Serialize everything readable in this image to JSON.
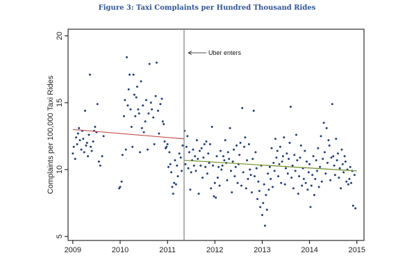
{
  "figure_title": "Figure 3: Taxi Complaints per Hundred Thousand Rides",
  "colors": {
    "title": "#2f5597",
    "points": "#1f3f78",
    "trend_before": "#c0504d",
    "trend_after": "#6b8e23",
    "event_line": "#888888",
    "plot_bg": "#ffffff",
    "frame": "#000000"
  },
  "chart_data": {
    "type": "scatter",
    "xlabel": "",
    "ylabel": "Complaints per 100,000 Taxi Rides",
    "xlim": [
      2008.9,
      2015.15
    ],
    "ylim": [
      4.7,
      20.5
    ],
    "xticks": [
      2009,
      2010,
      2011,
      2012,
      2013,
      2014,
      2015
    ],
    "yticks": [
      5,
      10,
      15,
      20
    ],
    "grid": false,
    "event": {
      "x": 2011.35,
      "label": "Uber enters"
    },
    "trend_lines": [
      {
        "x": [
          2009,
          2011.35
        ],
        "y": [
          13.0,
          12.3
        ]
      },
      {
        "x": [
          2011.35,
          2015
        ],
        "y": [
          10.7,
          9.9
        ]
      }
    ],
    "points": [
      [
        2009.0,
        11.2
      ],
      [
        2009.02,
        11.7
      ],
      [
        2009.05,
        10.8
      ],
      [
        2009.07,
        12.4
      ],
      [
        2009.09,
        11.9
      ],
      [
        2009.11,
        12.7
      ],
      [
        2009.13,
        13.1
      ],
      [
        2009.15,
        12.2
      ],
      [
        2009.18,
        11.5
      ],
      [
        2009.2,
        12.9
      ],
      [
        2009.22,
        12.3
      ],
      [
        2009.24,
        11.3
      ],
      [
        2009.26,
        14.4
      ],
      [
        2009.28,
        11.8
      ],
      [
        2009.3,
        12.0
      ],
      [
        2009.32,
        11.0
      ],
      [
        2009.34,
        12.6
      ],
      [
        2009.36,
        17.1
      ],
      [
        2009.38,
        11.7
      ],
      [
        2009.4,
        11.4
      ],
      [
        2009.43,
        12.1
      ],
      [
        2009.45,
        12.9
      ],
      [
        2009.47,
        13.2
      ],
      [
        2009.5,
        12.8
      ],
      [
        2009.52,
        14.9
      ],
      [
        2009.55,
        10.6
      ],
      [
        2009.58,
        10.3
      ],
      [
        2009.62,
        11.0
      ],
      [
        2009.65,
        12.5
      ],
      [
        2009.98,
        8.6
      ],
      [
        2010.0,
        8.7
      ],
      [
        2010.03,
        9.1
      ],
      [
        2010.05,
        11.1
      ],
      [
        2010.08,
        14.0
      ],
      [
        2010.1,
        15.2
      ],
      [
        2010.12,
        11.5
      ],
      [
        2010.14,
        18.4
      ],
      [
        2010.16,
        14.8
      ],
      [
        2010.18,
        16.0
      ],
      [
        2010.2,
        17.1
      ],
      [
        2010.22,
        14.5
      ],
      [
        2010.24,
        13.2
      ],
      [
        2010.26,
        11.7
      ],
      [
        2010.28,
        17.1
      ],
      [
        2010.3,
        15.6
      ],
      [
        2010.32,
        14.0
      ],
      [
        2010.34,
        15.4
      ],
      [
        2010.36,
        16.2
      ],
      [
        2010.38,
        14.5
      ],
      [
        2010.4,
        14.2
      ],
      [
        2010.42,
        11.3
      ],
      [
        2010.44,
        16.6
      ],
      [
        2010.46,
        13.1
      ],
      [
        2010.48,
        14.8
      ],
      [
        2010.5,
        12.8
      ],
      [
        2010.53,
        13.6
      ],
      [
        2010.55,
        15.2
      ],
      [
        2010.58,
        11.5
      ],
      [
        2010.6,
        14.2
      ],
      [
        2010.62,
        17.9
      ],
      [
        2010.65,
        15.0
      ],
      [
        2010.67,
        14.5
      ],
      [
        2010.7,
        13.9
      ],
      [
        2010.72,
        11.9
      ],
      [
        2010.75,
        15.5
      ],
      [
        2010.77,
        18.0
      ],
      [
        2010.8,
        14.4
      ],
      [
        2010.82,
        12.7
      ],
      [
        2010.85,
        14.9
      ],
      [
        2010.88,
        15.3
      ],
      [
        2010.9,
        13.6
      ],
      [
        2010.92,
        13.4
      ],
      [
        2010.94,
        12.1
      ],
      [
        2010.96,
        11.6
      ],
      [
        2010.98,
        11.7
      ],
      [
        2011.0,
        11.9
      ],
      [
        2011.02,
        10.2
      ],
      [
        2011.04,
        11.3
      ],
      [
        2011.06,
        10.4
      ],
      [
        2011.08,
        9.8
      ],
      [
        2011.1,
        8.7
      ],
      [
        2011.12,
        8.2
      ],
      [
        2011.14,
        9.0
      ],
      [
        2011.16,
        10.7
      ],
      [
        2011.18,
        8.9
      ],
      [
        2011.2,
        10.3
      ],
      [
        2011.22,
        9.5
      ],
      [
        2011.25,
        11.2
      ],
      [
        2011.28,
        10.9
      ],
      [
        2011.3,
        9.9
      ],
      [
        2011.32,
        11.8
      ],
      [
        2011.36,
        12.9
      ],
      [
        2011.38,
        10.4
      ],
      [
        2011.4,
        11.7
      ],
      [
        2011.42,
        12.5
      ],
      [
        2011.44,
        10.1
      ],
      [
        2011.46,
        11.3
      ],
      [
        2011.48,
        8.5
      ],
      [
        2011.5,
        9.8
      ],
      [
        2011.52,
        10.7
      ],
      [
        2011.54,
        11.5
      ],
      [
        2011.56,
        10.3
      ],
      [
        2011.58,
        11.0
      ],
      [
        2011.6,
        9.9
      ],
      [
        2011.62,
        12.2
      ],
      [
        2011.64,
        10.8
      ],
      [
        2011.66,
        8.2
      ],
      [
        2011.68,
        11.4
      ],
      [
        2011.7,
        10.3
      ],
      [
        2011.72,
        11.6
      ],
      [
        2011.74,
        9.4
      ],
      [
        2011.76,
        10.9
      ],
      [
        2011.78,
        11.9
      ],
      [
        2011.8,
        10.2
      ],
      [
        2011.82,
        12.1
      ],
      [
        2011.84,
        9.7
      ],
      [
        2011.86,
        11.2
      ],
      [
        2011.88,
        10.5
      ],
      [
        2011.9,
        11.9
      ],
      [
        2011.92,
        8.6
      ],
      [
        2011.94,
        13.2
      ],
      [
        2011.96,
        10.3
      ],
      [
        2011.98,
        8.0
      ],
      [
        2012.0,
        9.0
      ],
      [
        2012.02,
        7.9
      ],
      [
        2012.04,
        11.0
      ],
      [
        2012.06,
        9.4
      ],
      [
        2012.08,
        10.2
      ],
      [
        2012.1,
        8.8
      ],
      [
        2012.12,
        11.4
      ],
      [
        2012.14,
        10.0
      ],
      [
        2012.16,
        10.3
      ],
      [
        2012.18,
        11.0
      ],
      [
        2012.2,
        10.7
      ],
      [
        2012.22,
        12.2
      ],
      [
        2012.24,
        10.5
      ],
      [
        2012.26,
        9.2
      ],
      [
        2012.28,
        11.3
      ],
      [
        2012.3,
        10.8
      ],
      [
        2012.32,
        13.1
      ],
      [
        2012.34,
        9.9
      ],
      [
        2012.36,
        8.3
      ],
      [
        2012.38,
        10.6
      ],
      [
        2012.4,
        11.5
      ],
      [
        2012.42,
        9.5
      ],
      [
        2012.44,
        10.2
      ],
      [
        2012.46,
        11.8
      ],
      [
        2012.48,
        9.0
      ],
      [
        2012.5,
        10.4
      ],
      [
        2012.52,
        11.1
      ],
      [
        2012.54,
        12.0
      ],
      [
        2012.56,
        8.8
      ],
      [
        2012.58,
        14.6
      ],
      [
        2012.6,
        9.8
      ],
      [
        2012.62,
        11.7
      ],
      [
        2012.64,
        12.4
      ],
      [
        2012.66,
        8.6
      ],
      [
        2012.68,
        10.7
      ],
      [
        2012.7,
        9.3
      ],
      [
        2012.72,
        11.9
      ],
      [
        2012.74,
        10.0
      ],
      [
        2012.76,
        9.6
      ],
      [
        2012.78,
        8.3
      ],
      [
        2012.8,
        10.8
      ],
      [
        2012.82,
        14.4
      ],
      [
        2012.84,
        9.5
      ],
      [
        2012.86,
        11.3
      ],
      [
        2012.88,
        10.1
      ],
      [
        2012.9,
        7.8
      ],
      [
        2012.92,
        9.1
      ],
      [
        2012.94,
        8.4
      ],
      [
        2012.96,
        7.2
      ],
      [
        2012.98,
        10.3
      ],
      [
        2013.0,
        6.6
      ],
      [
        2013.02,
        7.5
      ],
      [
        2013.04,
        8.9
      ],
      [
        2013.06,
        5.8
      ],
      [
        2013.08,
        8.1
      ],
      [
        2013.1,
        7.0
      ],
      [
        2013.12,
        9.7
      ],
      [
        2013.14,
        8.5
      ],
      [
        2013.16,
        10.2
      ],
      [
        2013.18,
        9.3
      ],
      [
        2013.2,
        11.6
      ],
      [
        2013.22,
        8.7
      ],
      [
        2013.24,
        10.5
      ],
      [
        2013.26,
        9.9
      ],
      [
        2013.28,
        12.3
      ],
      [
        2013.3,
        10.9
      ],
      [
        2013.32,
        11.4
      ],
      [
        2013.34,
        9.5
      ],
      [
        2013.36,
        10.4
      ],
      [
        2013.38,
        11.7
      ],
      [
        2013.4,
        9.0
      ],
      [
        2013.42,
        10.6
      ],
      [
        2013.44,
        11.0
      ],
      [
        2013.46,
        12.4
      ],
      [
        2013.48,
        8.9
      ],
      [
        2013.5,
        10.1
      ],
      [
        2013.52,
        11.2
      ],
      [
        2013.54,
        9.7
      ],
      [
        2013.56,
        10.8
      ],
      [
        2013.58,
        12.0
      ],
      [
        2013.6,
        14.7
      ],
      [
        2013.62,
        9.4
      ],
      [
        2013.64,
        10.3
      ],
      [
        2013.66,
        8.6
      ],
      [
        2013.68,
        11.1
      ],
      [
        2013.7,
        9.9
      ],
      [
        2013.72,
        12.6
      ],
      [
        2013.74,
        10.7
      ],
      [
        2013.76,
        8.2
      ],
      [
        2013.78,
        9.5
      ],
      [
        2013.8,
        10.9
      ],
      [
        2013.82,
        11.8
      ],
      [
        2013.84,
        8.8
      ],
      [
        2013.86,
        10.1
      ],
      [
        2013.88,
        9.3
      ],
      [
        2013.9,
        11.4
      ],
      [
        2013.92,
        9.0
      ],
      [
        2013.94,
        10.6
      ],
      [
        2013.96,
        8.5
      ],
      [
        2013.98,
        9.8
      ],
      [
        2014.0,
        10.4
      ],
      [
        2014.02,
        7.2
      ],
      [
        2014.04,
        8.8
      ],
      [
        2014.06,
        9.6
      ],
      [
        2014.08,
        11.0
      ],
      [
        2014.1,
        8.1
      ],
      [
        2014.12,
        9.3
      ],
      [
        2014.14,
        10.7
      ],
      [
        2014.16,
        9.9
      ],
      [
        2014.18,
        11.6
      ],
      [
        2014.2,
        8.7
      ],
      [
        2014.22,
        10.2
      ],
      [
        2014.24,
        12.5
      ],
      [
        2014.26,
        9.1
      ],
      [
        2014.28,
        10.8
      ],
      [
        2014.3,
        13.5
      ],
      [
        2014.32,
        11.3
      ],
      [
        2014.34,
        9.7
      ],
      [
        2014.36,
        13.1
      ],
      [
        2014.38,
        10.5
      ],
      [
        2014.4,
        12.2
      ],
      [
        2014.42,
        11.8
      ],
      [
        2014.44,
        9.2
      ],
      [
        2014.46,
        10.9
      ],
      [
        2014.48,
        14.9
      ],
      [
        2014.5,
        11.0
      ],
      [
        2014.52,
        10.3
      ],
      [
        2014.54,
        9.6
      ],
      [
        2014.56,
        12.3
      ],
      [
        2014.58,
        10.7
      ],
      [
        2014.6,
        11.2
      ],
      [
        2014.62,
        9.4
      ],
      [
        2014.64,
        10.1
      ],
      [
        2014.66,
        8.6
      ],
      [
        2014.68,
        11.5
      ],
      [
        2014.7,
        10.4
      ],
      [
        2014.72,
        9.8
      ],
      [
        2014.74,
        11.0
      ],
      [
        2014.76,
        10.6
      ],
      [
        2014.78,
        9.1
      ],
      [
        2014.8,
        10.0
      ],
      [
        2014.82,
        8.9
      ],
      [
        2014.84,
        9.3
      ],
      [
        2014.86,
        10.2
      ],
      [
        2014.88,
        9.0
      ],
      [
        2014.9,
        9.9
      ],
      [
        2014.92,
        7.3
      ],
      [
        2014.95,
        9.6
      ],
      [
        2014.97,
        7.1
      ]
    ]
  }
}
